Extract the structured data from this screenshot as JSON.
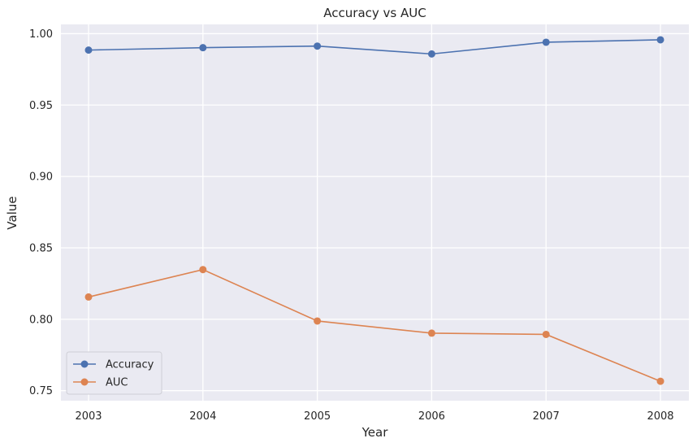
{
  "chart_data": {
    "type": "line",
    "title": "Accuracy vs AUC",
    "xlabel": "Year",
    "ylabel": "Value",
    "x": [
      "2003",
      "2004",
      "2005",
      "2006",
      "2007",
      "2008"
    ],
    "yticks": [
      "0.75",
      "0.80",
      "0.85",
      "0.90",
      "0.95",
      "1.00"
    ],
    "ylim": [
      0.743,
      1.0065
    ],
    "grid": true,
    "legend_position": "lower-left",
    "background_color": "#EAEAF2",
    "series": [
      {
        "name": "Accuracy",
        "color": "#4C72B0",
        "marker": "circle",
        "values": [
          0.9885,
          0.9902,
          0.9913,
          0.9858,
          0.994,
          0.9957
        ]
      },
      {
        "name": "AUC",
        "color": "#DD8452",
        "marker": "circle",
        "values": [
          0.8156,
          0.8348,
          0.7988,
          0.7903,
          0.7894,
          0.7566
        ]
      }
    ]
  }
}
